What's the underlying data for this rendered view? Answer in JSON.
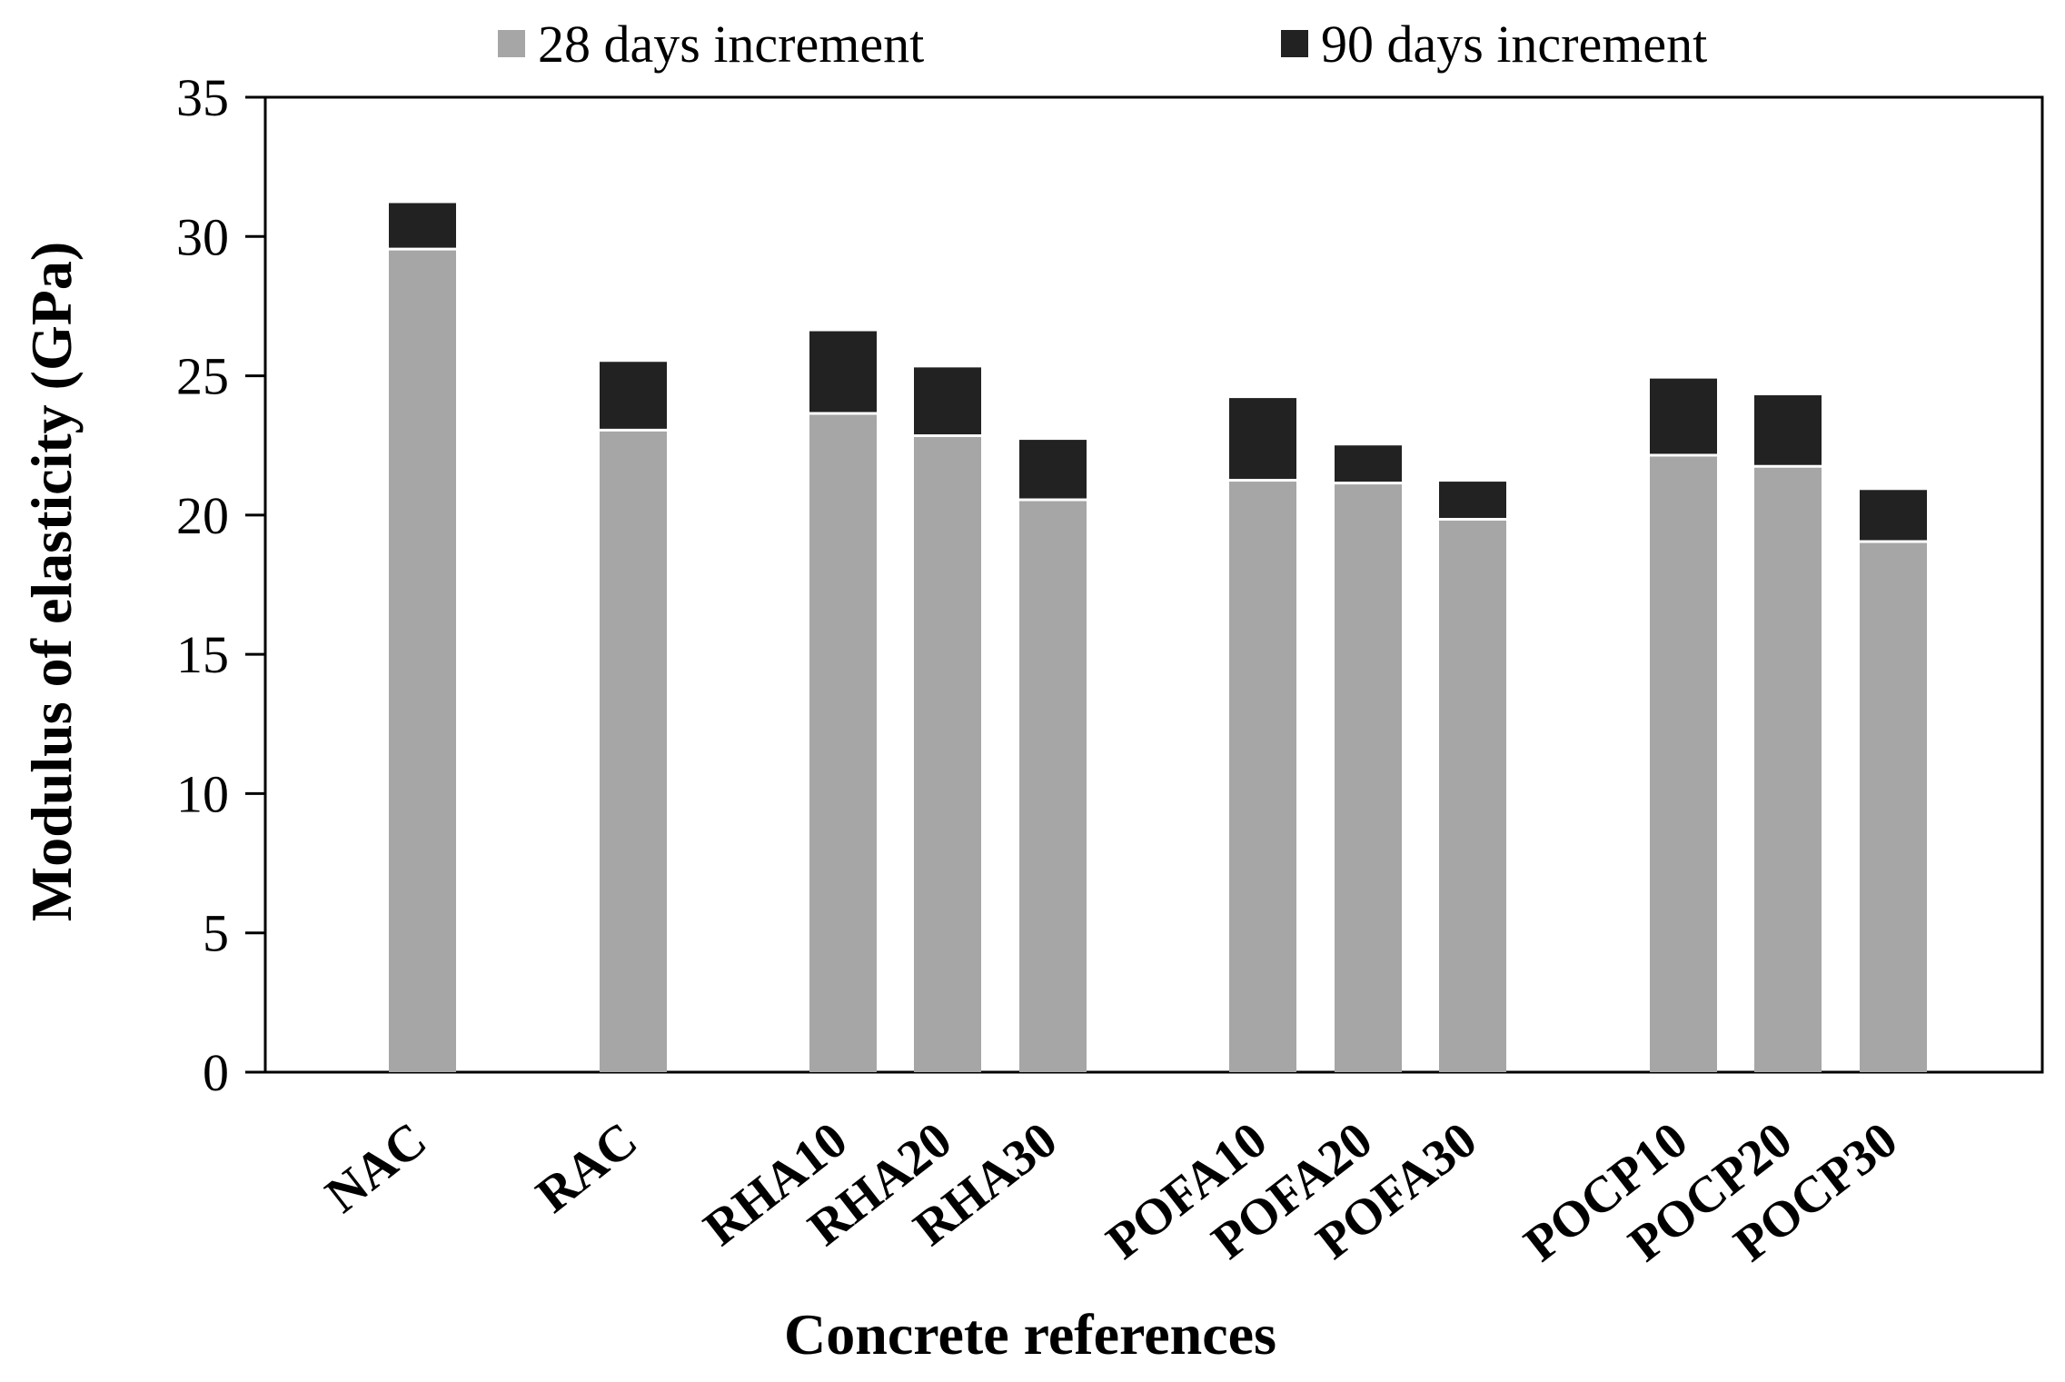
{
  "chart_data": {
    "type": "bar",
    "stacked": true,
    "title": "",
    "xlabel": "Concrete references",
    "ylabel": "Modulus of elasticity (GPa)",
    "ylim": [
      0,
      35
    ],
    "yticks": [
      0,
      5,
      10,
      15,
      20,
      25,
      30,
      35
    ],
    "grid": false,
    "legend_position": "top",
    "groups": [
      [
        "NAC"
      ],
      [
        "RAC"
      ],
      [
        "RHA10",
        "RHA20",
        "RHA30"
      ],
      [
        "POFA10",
        "POFA20",
        "POFA30"
      ],
      [
        "POCP10",
        "POCP20",
        "POCP30"
      ]
    ],
    "categories": [
      "NAC",
      "RAC",
      "RHA10",
      "RHA20",
      "RHA30",
      "POFA10",
      "POFA20",
      "POFA30",
      "POCP10",
      "POCP20",
      "POCP30"
    ],
    "series": [
      {
        "name": "28 days increment",
        "color": "#a6a6a6",
        "values": [
          29.5,
          23.0,
          23.6,
          22.8,
          20.5,
          21.2,
          21.1,
          19.8,
          22.1,
          21.7,
          19.0
        ]
      },
      {
        "name": "90 days increment",
        "color": "#222222",
        "values": [
          1.7,
          2.5,
          3.0,
          2.5,
          2.2,
          3.0,
          1.4,
          1.4,
          2.8,
          2.6,
          1.9
        ]
      }
    ]
  }
}
